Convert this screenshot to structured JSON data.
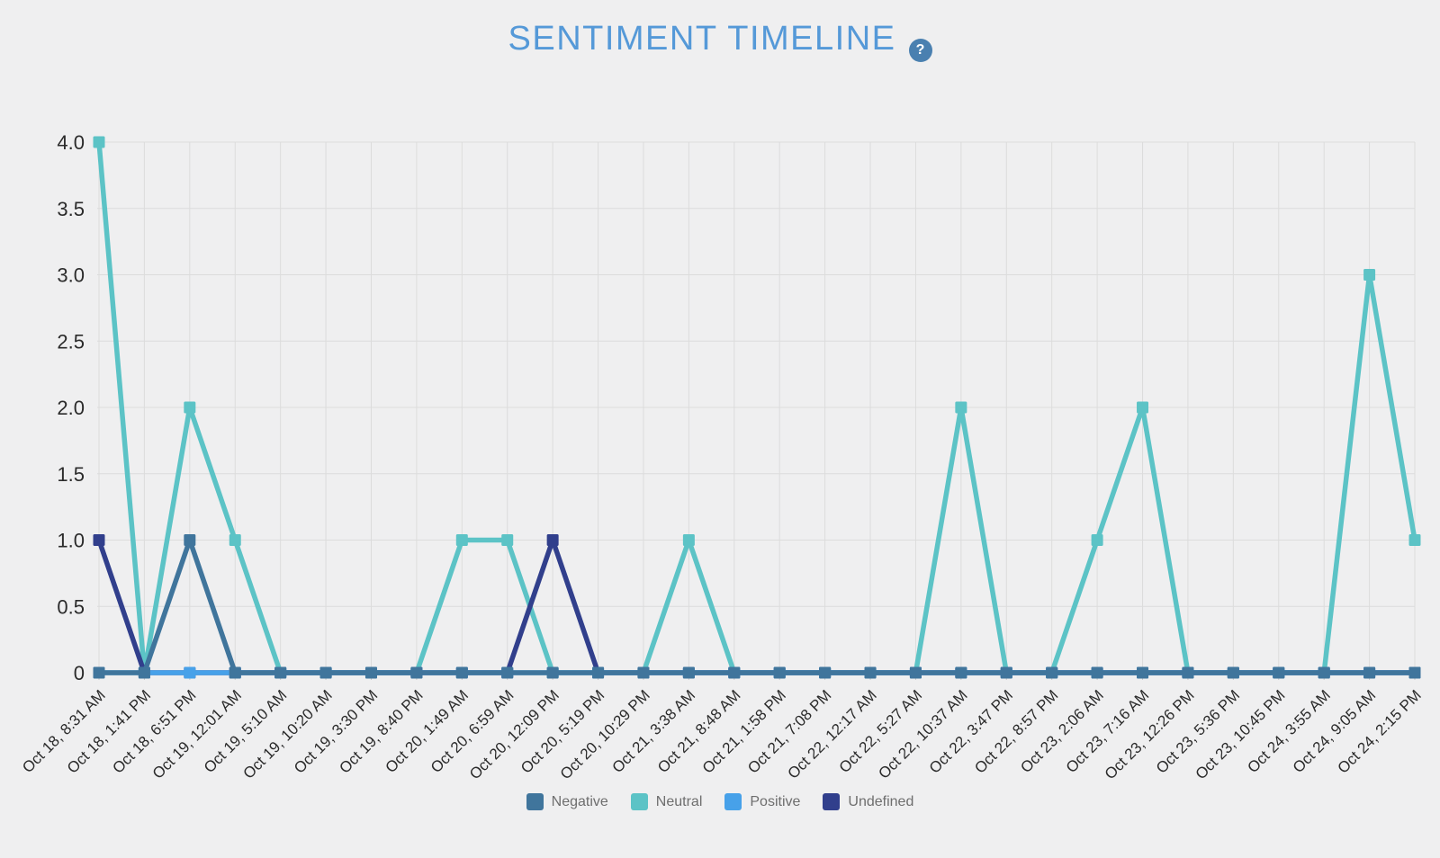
{
  "header": {
    "title": "SENTIMENT TIMELINE",
    "help_glyph": "?"
  },
  "colors": {
    "background": "#EFEFF0",
    "title": "#5599D8",
    "help_icon_bg": "#4A80B0",
    "gridline": "#DCDCDC",
    "tick_stub": "#C9C9C9",
    "axis_label": "#2B2B2B",
    "legend_label": "#6E6E6E"
  },
  "chart_data": {
    "type": "line",
    "title": "SENTIMENT TIMELINE",
    "xlabel": "",
    "ylabel": "",
    "grid": true,
    "legend_position": "bottom",
    "marker": "square",
    "ylim": [
      0,
      4
    ],
    "yticks": [
      0,
      0.5,
      1,
      1.5,
      2,
      2.5,
      3,
      3.5,
      4
    ],
    "ytick_labels": [
      "0",
      "0.5",
      "1.0",
      "1.5",
      "2.0",
      "2.5",
      "3.0",
      "3.5",
      "4.0"
    ],
    "categories": [
      "Oct 18, 8:31 AM",
      "Oct 18, 1:41 PM",
      "Oct 18, 6:51 PM",
      "Oct 19, 12:01 AM",
      "Oct 19, 5:10 AM",
      "Oct 19, 10:20 AM",
      "Oct 19, 3:30 PM",
      "Oct 19, 8:40 PM",
      "Oct 20, 1:49 AM",
      "Oct 20, 6:59 AM",
      "Oct 20, 12:09 PM",
      "Oct 20, 5:19 PM",
      "Oct 20, 10:29 PM",
      "Oct 21, 3:38 AM",
      "Oct 21, 8:48 AM",
      "Oct 21, 1:58 PM",
      "Oct 21, 7:08 PM",
      "Oct 22, 12:17 AM",
      "Oct 22, 5:27 AM",
      "Oct 22, 10:37 AM",
      "Oct 22, 3:47 PM",
      "Oct 22, 8:57 PM",
      "Oct 23, 2:06 AM",
      "Oct 23, 7:16 AM",
      "Oct 23, 12:26 PM",
      "Oct 23, 5:36 PM",
      "Oct 23, 10:45 PM",
      "Oct 24, 3:55 AM",
      "Oct 24, 9:05 AM",
      "Oct 24, 2:15 PM"
    ],
    "series": [
      {
        "name": "Negative",
        "color": "#40759C",
        "values": [
          0,
          0,
          1,
          0,
          0,
          0,
          0,
          0,
          0,
          0,
          0,
          0,
          0,
          0,
          0,
          0,
          0,
          0,
          0,
          0,
          0,
          0,
          0,
          0,
          0,
          0,
          0,
          0,
          0,
          0
        ]
      },
      {
        "name": "Neutral",
        "color": "#5CC3C6",
        "values": [
          4,
          0,
          2,
          1,
          0,
          0,
          0,
          0,
          1,
          1,
          0,
          0,
          0,
          1,
          0,
          0,
          0,
          0,
          0,
          2,
          0,
          0,
          1,
          2,
          0,
          0,
          0,
          0,
          3,
          1
        ]
      },
      {
        "name": "Positive",
        "color": "#47A1E9",
        "values": [
          0,
          0,
          0,
          0,
          0,
          0,
          0,
          0,
          0,
          0,
          0,
          0,
          0,
          0,
          0,
          0,
          0,
          0,
          0,
          0,
          0,
          0,
          0,
          0,
          0,
          0,
          0,
          0,
          0,
          0
        ]
      },
      {
        "name": "Undefined",
        "color": "#313F8C",
        "values": [
          1,
          0,
          0,
          0,
          0,
          0,
          0,
          0,
          0,
          0,
          1,
          0,
          0,
          0,
          0,
          0,
          0,
          0,
          0,
          0,
          0,
          0,
          0,
          0,
          0,
          0,
          0,
          0,
          0,
          0
        ]
      }
    ],
    "draw_order": [
      1,
      3,
      2,
      0
    ]
  }
}
